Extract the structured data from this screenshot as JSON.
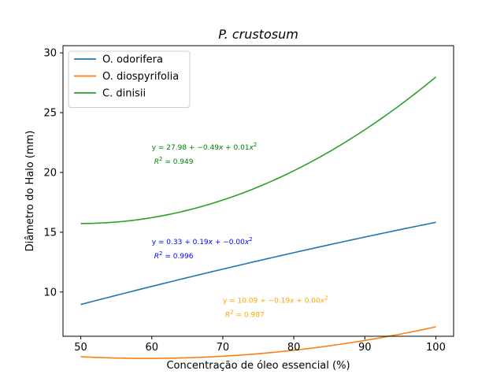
{
  "chart_data": {
    "type": "line",
    "title": "P. crustosum",
    "xlabel": "Concentração de óleo essencial (%)",
    "ylabel": "Diâmetro do Halo (mm)",
    "xlim": [
      47.5,
      102.5
    ],
    "ylim": [
      6.3,
      30.6
    ],
    "xticks": [
      50,
      60,
      70,
      80,
      90,
      100
    ],
    "yticks": [
      10,
      15,
      20,
      25,
      30
    ],
    "grid": false,
    "legend_position": "top-left",
    "series": [
      {
        "name": "O. odorifera",
        "color": "#1f77b4",
        "poly": [
          0.33,
          0.19,
          -0.00035
        ],
        "x_range": [
          50,
          100
        ],
        "equation_prefix": "y = 0.33 + 0.19",
        "equation_mid": "x",
        "equation_mid2": " + −0.00",
        "equation_suffix": "x",
        "equation_sup": "2",
        "r2_label": "R",
        "r2_sup": "2",
        "r2_value": " = 0.996",
        "annotation_color": "#0000ff",
        "annotation_x": 60,
        "annotation_y": 14.0
      },
      {
        "name": "O. diospyrifolia",
        "color": "#ff7f0e",
        "poly": [
          10.09,
          -0.19,
          0.0016
        ],
        "x_range": [
          50,
          100
        ],
        "equation_prefix": "y = 10.09 + −0.19",
        "equation_mid": "x",
        "equation_mid2": " + 0.00",
        "equation_suffix": "x",
        "equation_sup": "2",
        "r2_label": "R",
        "r2_sup": "2",
        "r2_value": " = 0.987",
        "annotation_color": "#ffa500",
        "annotation_x": 70,
        "annotation_y": 9.1
      },
      {
        "name": "C. dinisii",
        "color": "#2ca02c",
        "poly": [
          27.98,
          -0.49,
          0.0049
        ],
        "x_range": [
          50,
          100
        ],
        "equation_prefix": "y = 27.98 + −0.49",
        "equation_mid": "x",
        "equation_mid2": " + 0.01",
        "equation_suffix": "x",
        "equation_sup": "2",
        "r2_label": "R",
        "r2_sup": "2",
        "r2_value": " = 0.949",
        "annotation_color": "#008000",
        "annotation_x": 60,
        "annotation_y": 21.9
      }
    ]
  }
}
